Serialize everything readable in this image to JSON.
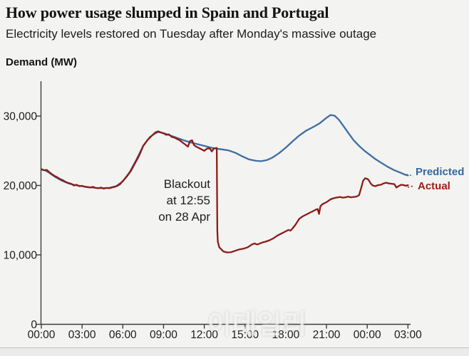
{
  "header": {
    "title": "How power usage slumped in Spain and Portugal",
    "subtitle": "Electricity levels restored on Tuesday after Monday's massive outage"
  },
  "chart": {
    "y_axis_title": "Demand (MW)",
    "annotation": {
      "lines": [
        "Blackout",
        "at 12:55",
        "on 28 Apr"
      ]
    },
    "legend": {
      "predicted": "Predicted",
      "actual": "Actual"
    }
  },
  "watermark": "이데일리",
  "colors": {
    "background": "#f3f3f1",
    "axis": "#3c3c3c",
    "predicted_line": "#3e6da5",
    "predicted_text": "#34699f",
    "actual_line": "#8c1c18",
    "actual_text": "#9e1e16"
  },
  "chart_data": {
    "type": "line",
    "title": "How power usage slumped in Spain and Portugal",
    "subtitle": "Electricity levels restored on Tuesday after Monday's massive outage",
    "ylabel": "Demand (MW)",
    "ylim": [
      0,
      34000
    ],
    "x_hours_range": [
      0,
      27
    ],
    "grid": false,
    "legend_position": "right-of-line-ends",
    "y_ticks": [
      {
        "v": 0,
        "label": "0"
      },
      {
        "v": 10000,
        "label": "10,000"
      },
      {
        "v": 20000,
        "label": "20,000"
      },
      {
        "v": 30000,
        "label": "30,000"
      }
    ],
    "x_ticks": [
      {
        "h": 0,
        "label": "00:00"
      },
      {
        "h": 3,
        "label": "03:00"
      },
      {
        "h": 6,
        "label": "06:00"
      },
      {
        "h": 9,
        "label": "09:00"
      },
      {
        "h": 12,
        "label": "12:00"
      },
      {
        "h": 15,
        "label": "15:00"
      },
      {
        "h": 18,
        "label": "18:00"
      },
      {
        "h": 21,
        "label": "21:00"
      },
      {
        "h": 24,
        "label": "00:00"
      },
      {
        "h": 27,
        "label": "03:00"
      }
    ],
    "annotation": {
      "text": "Blackout at 12:55 on 28 Apr",
      "at_hour": 12.92
    },
    "series": [
      {
        "name": "Predicted",
        "points": [
          [
            0,
            22300
          ],
          [
            0.3,
            22150
          ],
          [
            0.6,
            21800
          ],
          [
            1,
            21250
          ],
          [
            1.5,
            20700
          ],
          [
            2,
            20300
          ],
          [
            2.5,
            20050
          ],
          [
            3,
            19900
          ],
          [
            3.5,
            19750
          ],
          [
            4,
            19650
          ],
          [
            4.5,
            19600
          ],
          [
            5,
            19650
          ],
          [
            5.5,
            19900
          ],
          [
            6,
            20600
          ],
          [
            6.5,
            21900
          ],
          [
            7,
            23700
          ],
          [
            7.5,
            25700
          ],
          [
            8,
            27000
          ],
          [
            8.3,
            27400
          ],
          [
            8.6,
            27700
          ],
          [
            9,
            27550
          ],
          [
            9.5,
            27200
          ],
          [
            10,
            26850
          ],
          [
            10.5,
            26500
          ],
          [
            11,
            26200
          ],
          [
            11.5,
            25950
          ],
          [
            12,
            25700
          ],
          [
            12.5,
            25450
          ],
          [
            12.92,
            25300
          ],
          [
            13.3,
            25200
          ],
          [
            13.8,
            25050
          ],
          [
            14.3,
            24700
          ],
          [
            14.8,
            24200
          ],
          [
            15.3,
            23750
          ],
          [
            15.8,
            23550
          ],
          [
            16.2,
            23500
          ],
          [
            16.6,
            23650
          ],
          [
            17,
            24000
          ],
          [
            17.5,
            24650
          ],
          [
            18,
            25450
          ],
          [
            18.5,
            26350
          ],
          [
            19,
            27200
          ],
          [
            19.5,
            27900
          ],
          [
            20,
            28400
          ],
          [
            20.5,
            28950
          ],
          [
            21,
            29750
          ],
          [
            21.3,
            30150
          ],
          [
            21.6,
            30050
          ],
          [
            21.9,
            29500
          ],
          [
            22.2,
            28700
          ],
          [
            22.6,
            27600
          ],
          [
            23,
            26500
          ],
          [
            23.4,
            25700
          ],
          [
            23.8,
            25000
          ],
          [
            24.2,
            24400
          ],
          [
            24.6,
            23800
          ],
          [
            25,
            23300
          ],
          [
            25.5,
            22700
          ],
          [
            26,
            22200
          ],
          [
            26.5,
            21800
          ],
          [
            26.8,
            21550
          ],
          [
            27,
            21450
          ]
        ]
      },
      {
        "name": "Actual",
        "points": [
          [
            0,
            22350
          ],
          [
            0.2,
            22200
          ],
          [
            0.4,
            22250
          ],
          [
            0.6,
            21900
          ],
          [
            0.8,
            21600
          ],
          [
            1,
            21350
          ],
          [
            1.2,
            21150
          ],
          [
            1.4,
            20900
          ],
          [
            1.6,
            20750
          ],
          [
            1.8,
            20500
          ],
          [
            2,
            20350
          ],
          [
            2.2,
            20250
          ],
          [
            2.4,
            20000
          ],
          [
            2.6,
            20100
          ],
          [
            2.8,
            19900
          ],
          [
            3,
            19950
          ],
          [
            3.2,
            19800
          ],
          [
            3.4,
            19750
          ],
          [
            3.6,
            19700
          ],
          [
            3.8,
            19800
          ],
          [
            4,
            19650
          ],
          [
            4.2,
            19600
          ],
          [
            4.4,
            19700
          ],
          [
            4.6,
            19550
          ],
          [
            4.8,
            19650
          ],
          [
            5,
            19600
          ],
          [
            5.2,
            19700
          ],
          [
            5.4,
            19800
          ],
          [
            5.6,
            19950
          ],
          [
            5.8,
            20200
          ],
          [
            6,
            20650
          ],
          [
            6.3,
            21300
          ],
          [
            6.6,
            22100
          ],
          [
            6.9,
            23200
          ],
          [
            7.2,
            24300
          ],
          [
            7.5,
            25700
          ],
          [
            7.8,
            26500
          ],
          [
            8.1,
            27100
          ],
          [
            8.4,
            27650
          ],
          [
            8.6,
            27800
          ],
          [
            8.8,
            27650
          ],
          [
            9,
            27500
          ],
          [
            9.2,
            27300
          ],
          [
            9.4,
            27350
          ],
          [
            9.6,
            27000
          ],
          [
            9.8,
            26900
          ],
          [
            10,
            26700
          ],
          [
            10.2,
            26500
          ],
          [
            10.4,
            26200
          ],
          [
            10.6,
            25900
          ],
          [
            10.8,
            25600
          ],
          [
            10.95,
            26400
          ],
          [
            11.1,
            26500
          ],
          [
            11.25,
            25800
          ],
          [
            11.4,
            25600
          ],
          [
            11.6,
            25400
          ],
          [
            11.8,
            25200
          ],
          [
            12,
            25000
          ],
          [
            12.2,
            25300
          ],
          [
            12.4,
            25350
          ],
          [
            12.55,
            24900
          ],
          [
            12.7,
            25300
          ],
          [
            12.92,
            25400
          ],
          [
            12.96,
            13500
          ],
          [
            13.0,
            11900
          ],
          [
            13.1,
            11100
          ],
          [
            13.25,
            10800
          ],
          [
            13.4,
            10500
          ],
          [
            13.7,
            10350
          ],
          [
            14,
            10400
          ],
          [
            14.3,
            10600
          ],
          [
            14.6,
            10800
          ],
          [
            14.9,
            10900
          ],
          [
            15.2,
            11100
          ],
          [
            15.5,
            11500
          ],
          [
            15.7,
            11650
          ],
          [
            15.9,
            11500
          ],
          [
            16.1,
            11650
          ],
          [
            16.3,
            11800
          ],
          [
            16.5,
            11900
          ],
          [
            16.8,
            12100
          ],
          [
            17.1,
            12400
          ],
          [
            17.4,
            12800
          ],
          [
            17.7,
            13100
          ],
          [
            18,
            13400
          ],
          [
            18.2,
            13600
          ],
          [
            18.35,
            13500
          ],
          [
            18.5,
            13800
          ],
          [
            18.7,
            14300
          ],
          [
            19,
            15200
          ],
          [
            19.2,
            15500
          ],
          [
            19.4,
            15700
          ],
          [
            19.6,
            15900
          ],
          [
            19.8,
            16100
          ],
          [
            20,
            16300
          ],
          [
            20.2,
            16500
          ],
          [
            20.35,
            16600
          ],
          [
            20.45,
            15900
          ],
          [
            20.55,
            17000
          ],
          [
            20.7,
            17300
          ],
          [
            21,
            17600
          ],
          [
            21.3,
            18000
          ],
          [
            21.5,
            18150
          ],
          [
            21.7,
            18250
          ],
          [
            22,
            18350
          ],
          [
            22.2,
            18250
          ],
          [
            22.4,
            18300
          ],
          [
            22.6,
            18400
          ],
          [
            22.8,
            18300
          ],
          [
            23,
            18350
          ],
          [
            23.2,
            18400
          ],
          [
            23.4,
            18600
          ],
          [
            23.55,
            19600
          ],
          [
            23.7,
            20700
          ],
          [
            23.85,
            21050
          ],
          [
            24,
            20950
          ],
          [
            24.1,
            20800
          ],
          [
            24.25,
            20300
          ],
          [
            24.4,
            20000
          ],
          [
            24.6,
            19900
          ],
          [
            24.8,
            20050
          ],
          [
            25,
            20100
          ],
          [
            25.2,
            20300
          ],
          [
            25.4,
            20400
          ],
          [
            25.6,
            20300
          ],
          [
            25.8,
            20250
          ],
          [
            26,
            20200
          ],
          [
            26.15,
            19700
          ],
          [
            26.3,
            19900
          ],
          [
            26.5,
            20100
          ],
          [
            26.7,
            20050
          ],
          [
            26.85,
            19950
          ],
          [
            27,
            20050
          ]
        ]
      }
    ]
  }
}
